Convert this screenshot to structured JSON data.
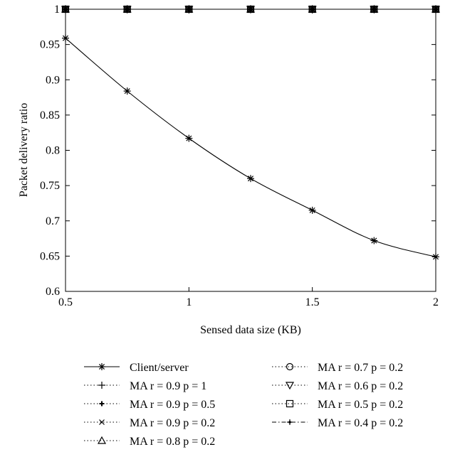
{
  "chart_data": {
    "type": "line",
    "xlabel": "Sensed data size (KB)",
    "ylabel": "Packet delivery ratio",
    "xlim": [
      0.5,
      2
    ],
    "ylim": [
      0.6,
      1
    ],
    "x_ticks": [
      "0.5",
      "1",
      "1.5",
      "2"
    ],
    "y_ticks": [
      "0.6",
      "0.65",
      "0.7",
      "0.75",
      "0.8",
      "0.85",
      "0.9",
      "0.95",
      "1"
    ],
    "x": [
      0.5,
      0.75,
      1.0,
      1.25,
      1.5,
      1.75,
      2.0
    ],
    "grid": false,
    "legend_position": "bottom",
    "series": [
      {
        "name": "Client/server",
        "marker": "asterisk",
        "line": "solid",
        "values": [
          0.959,
          0.884,
          0.817,
          0.76,
          0.715,
          0.672,
          0.649
        ]
      },
      {
        "name": "MA r = 0.9 p = 1",
        "marker": "plus",
        "line": "dotted",
        "values": [
          1,
          1,
          1,
          1,
          1,
          1,
          1
        ]
      },
      {
        "name": "MA r = 0.9 p = 0.5",
        "marker": "point-plus",
        "line": "dotted",
        "values": [
          1,
          1,
          1,
          1,
          1,
          1,
          1
        ]
      },
      {
        "name": "MA r = 0.9 p = 0.2",
        "marker": "x",
        "line": "dotted",
        "values": [
          1,
          1,
          1,
          1,
          1,
          1,
          1
        ]
      },
      {
        "name": "MA r = 0.8 p = 0.2",
        "marker": "triangle-up",
        "line": "dotted",
        "values": [
          1,
          1,
          1,
          1,
          1,
          1,
          1
        ]
      },
      {
        "name": "MA r = 0.7 p = 0.2",
        "marker": "circle",
        "line": "dotted",
        "values": [
          1,
          1,
          1,
          1,
          1,
          1,
          1
        ]
      },
      {
        "name": "MA r = 0.6 p = 0.2",
        "marker": "triangle-down",
        "line": "dotted",
        "values": [
          1,
          1,
          1,
          1,
          1,
          1,
          1
        ]
      },
      {
        "name": "MA r = 0.5 p = 0.2",
        "marker": "square",
        "line": "dotted",
        "values": [
          1,
          1,
          1,
          1,
          1,
          1,
          1
        ]
      },
      {
        "name": "MA r = 0.4 p = 0.2",
        "marker": "dot-plus",
        "line": "dashdot",
        "values": [
          1,
          1,
          1,
          1,
          1,
          1,
          1
        ]
      }
    ]
  }
}
